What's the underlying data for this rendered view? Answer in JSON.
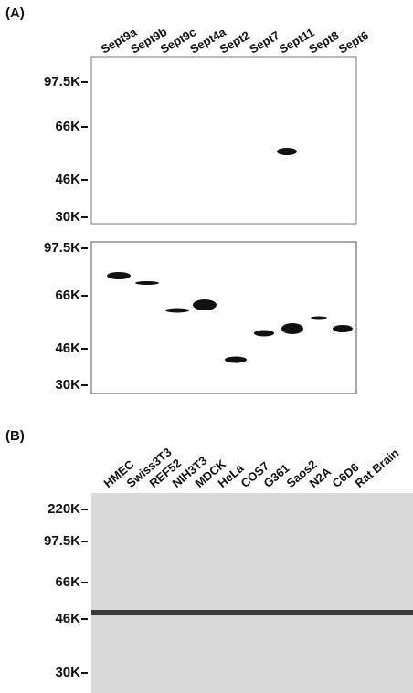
{
  "panel_a": {
    "label": "(A)",
    "lanes": [
      "Sept9a",
      "Sept9b",
      "Sept9c",
      "Sept4a",
      "Sept2",
      "Sept7",
      "Sept11",
      "Sept8",
      "Sept6"
    ],
    "blot_1": {
      "markers": [
        "97.5K",
        "66K",
        "46K",
        "30K"
      ]
    },
    "blot_2": {
      "markers": [
        "97.5K",
        "66K",
        "46K",
        "30K"
      ]
    }
  },
  "panel_b": {
    "label": "(B)",
    "lanes": [
      "HMEC",
      "Swiss3T3",
      "REF52",
      "NIH3T3",
      "MDCK",
      "HeLa",
      "COS7",
      "G361",
      "Saos2",
      "N2A",
      "C6D6",
      "Rat Brain"
    ],
    "markers": [
      "220K",
      "97.5K",
      "66K",
      "46K",
      "30K"
    ]
  }
}
